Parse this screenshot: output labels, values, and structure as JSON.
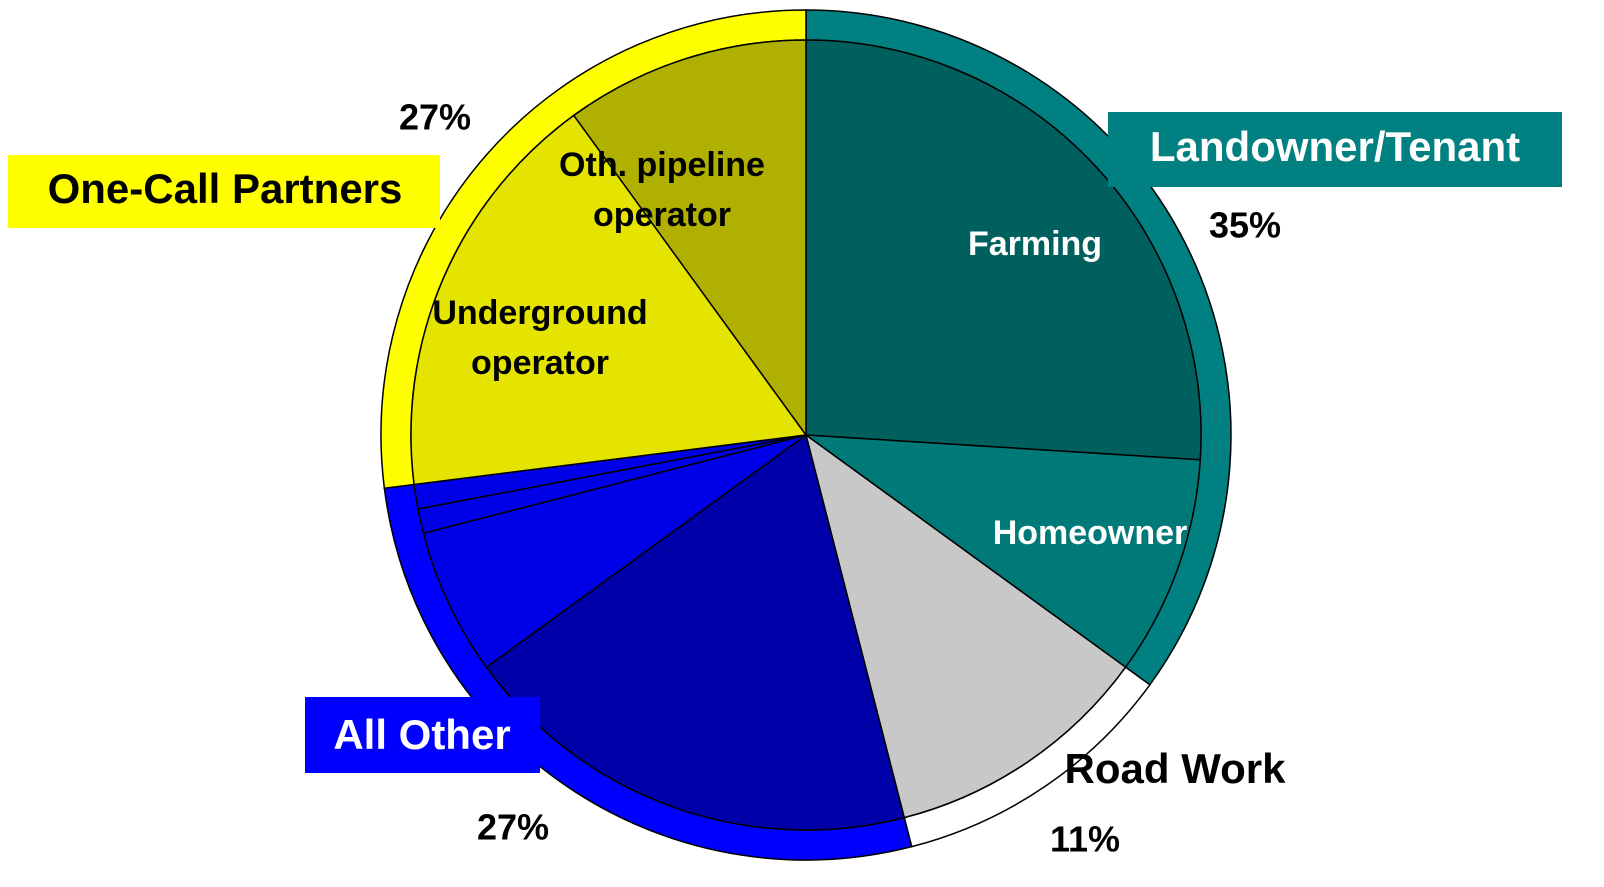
{
  "chart_data": {
    "type": "pie",
    "groups": [
      {
        "name": "Landowner/Tenant",
        "color": "#008080",
        "value": 35,
        "value_label": "35%",
        "slices": [
          {
            "label": [
              "Farming"
            ],
            "value": 26,
            "color": "#00605e"
          },
          {
            "label": [
              "Homeowner"
            ],
            "value": 9,
            "color": "#007a78"
          }
        ]
      },
      {
        "name": "Road Work",
        "color": "#ffffff",
        "value": 11,
        "value_label": "11%",
        "slices": [
          {
            "label": null,
            "value": 11,
            "color": "#c8c8c8"
          }
        ]
      },
      {
        "name": "All Other",
        "color": "#0000ff",
        "value": 27,
        "value_label": "27%",
        "slices": [
          {
            "label": null,
            "value": 19,
            "color": "#0000a8"
          },
          {
            "label": null,
            "value": 6,
            "color": "#0000e8"
          },
          {
            "label": null,
            "value": 1,
            "color": "#0000e8"
          },
          {
            "label": null,
            "value": 1,
            "color": "#0000e8"
          }
        ]
      },
      {
        "name": "One-Call Partners",
        "color": "#ffff00",
        "value": 27,
        "value_label": "27%",
        "slices": [
          {
            "label": [
              "Underground",
              "operator"
            ],
            "value": 17,
            "color": "#e4e400"
          },
          {
            "label": [
              "Oth. pipeline",
              "operator"
            ],
            "value": 10,
            "color": "#b0b000"
          }
        ]
      }
    ]
  }
}
